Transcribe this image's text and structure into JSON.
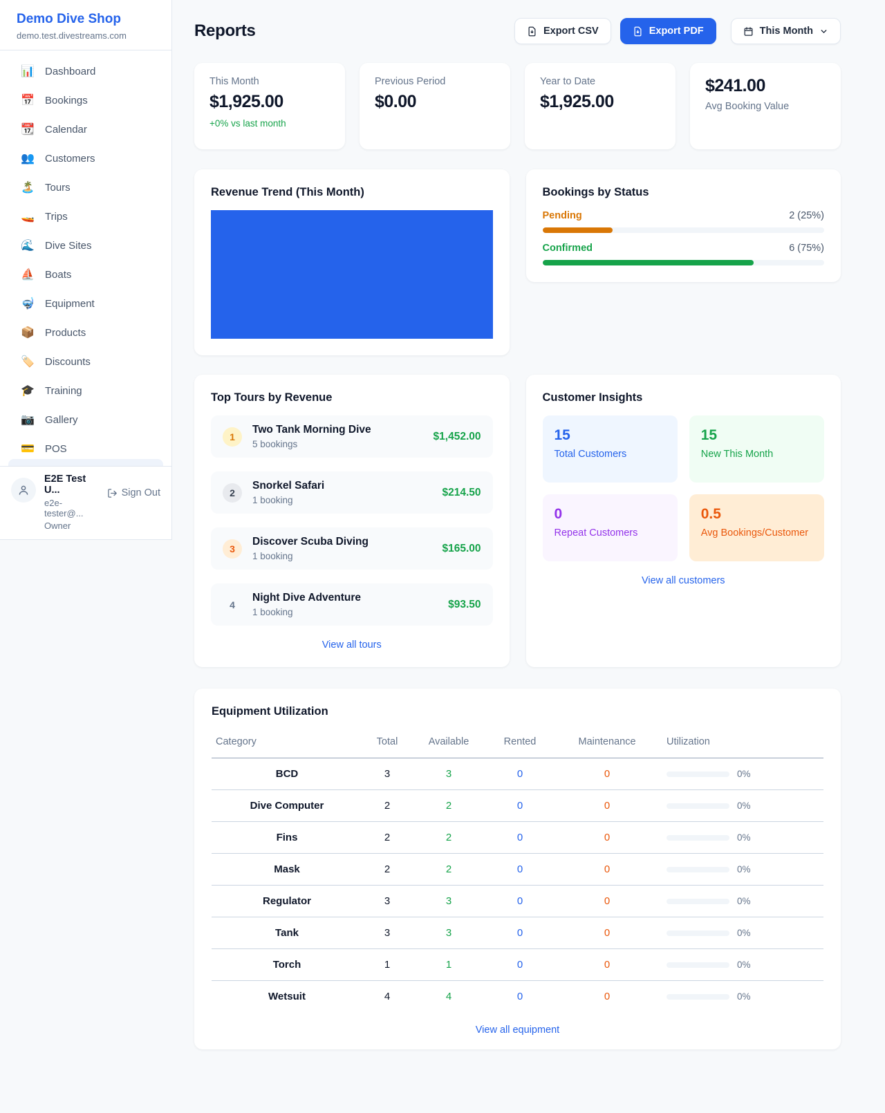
{
  "app": {
    "name": "Demo Dive Shop",
    "domain": "demo.test.divestreams.com"
  },
  "sidebar": {
    "items": [
      {
        "icon": "📊",
        "name": "dashboard",
        "label": "Dashboard"
      },
      {
        "icon": "📅",
        "name": "bookings",
        "label": "Bookings"
      },
      {
        "icon": "📆",
        "name": "calendar",
        "label": "Calendar"
      },
      {
        "icon": "👥",
        "name": "customers",
        "label": "Customers"
      },
      {
        "icon": "🏝️",
        "name": "tours",
        "label": "Tours"
      },
      {
        "icon": "🚤",
        "name": "trips",
        "label": "Trips"
      },
      {
        "icon": "🌊",
        "name": "dive-sites",
        "label": "Dive Sites"
      },
      {
        "icon": "⛵",
        "name": "boats",
        "label": "Boats"
      },
      {
        "icon": "🤿",
        "name": "equipment",
        "label": "Equipment"
      },
      {
        "icon": "📦",
        "name": "products",
        "label": "Products"
      },
      {
        "icon": "🏷️",
        "name": "discounts",
        "label": "Discounts"
      },
      {
        "icon": "🎓",
        "name": "training",
        "label": "Training"
      },
      {
        "icon": "📷",
        "name": "gallery",
        "label": "Gallery"
      },
      {
        "icon": "💳",
        "name": "pos",
        "label": "POS"
      }
    ],
    "user": {
      "name": "E2E Test U...",
      "email": "e2e-tester@...",
      "role": "Owner",
      "signout_label": "Sign Out"
    }
  },
  "header": {
    "title": "Reports",
    "export_csv_label": "Export CSV",
    "export_pdf_label": "Export PDF",
    "period_label": "This Month"
  },
  "stats": [
    {
      "label": "This Month",
      "value": "$1,925.00",
      "delta": "+0% vs last month",
      "value_first": false
    },
    {
      "label": "Previous Period",
      "value": "$0.00",
      "delta": "",
      "value_first": false
    },
    {
      "label": "Year to Date",
      "value": "$1,925.00",
      "delta": "",
      "value_first": false
    },
    {
      "label": "Avg Booking Value",
      "value": "$241.00",
      "delta": "",
      "value_first": true
    }
  ],
  "revenue_trend": {
    "title": "Revenue Trend (This Month)",
    "bar_color": "#2563eb",
    "note": "single full-width bar, no axes or labels visible"
  },
  "bookings_by_status": {
    "title": "Bookings by Status",
    "rows": [
      {
        "label": "Pending",
        "value": "2 (25%)",
        "pct": 25,
        "color": "#d97706"
      },
      {
        "label": "Confirmed",
        "value": "6 (75%)",
        "pct": 75,
        "color": "#16a34a"
      }
    ]
  },
  "top_tours": {
    "title": "Top Tours by Revenue",
    "rows": [
      {
        "rank": "1",
        "name": "Two Tank Morning Dive",
        "sub": "5 bookings",
        "amount": "$1,452.00",
        "badge_bg": "#fef3c7",
        "badge_color": "#d97706"
      },
      {
        "rank": "2",
        "name": "Snorkel Safari",
        "sub": "1 booking",
        "amount": "$214.50",
        "badge_bg": "#e8eaee",
        "badge_color": "#374151"
      },
      {
        "rank": "3",
        "name": "Discover Scuba Diving",
        "sub": "1 booking",
        "amount": "$165.00",
        "badge_bg": "#ffedd5",
        "badge_color": "#ea580c"
      },
      {
        "rank": "4",
        "name": "Night Dive Adventure",
        "sub": "1 booking",
        "amount": "$93.50",
        "badge_bg": "transparent",
        "badge_color": "#64748b"
      }
    ],
    "link": "View all tours"
  },
  "customer_insights": {
    "title": "Customer Insights",
    "tiles": [
      {
        "value": "15",
        "label": "Total Customers",
        "bg": "#eff6ff",
        "color": "#2563eb"
      },
      {
        "value": "15",
        "label": "New This Month",
        "bg": "#f0fdf4",
        "color": "#16a34a"
      },
      {
        "value": "0",
        "label": "Repeat Customers",
        "bg": "#faf5ff",
        "color": "#9333ea"
      },
      {
        "value": "0.5",
        "label": "Avg Bookings/Customer",
        "bg": "#ffedd5",
        "color": "#ea580c"
      }
    ],
    "link": "View all customers"
  },
  "equipment": {
    "title": "Equipment Utilization",
    "columns": [
      "Category",
      "Total",
      "Available",
      "Rented",
      "Maintenance",
      "Utilization"
    ],
    "rows": [
      {
        "category": "BCD",
        "total": "3",
        "available": "3",
        "rented": "0",
        "maintenance": "0",
        "utilization": "0%"
      },
      {
        "category": "Dive Computer",
        "total": "2",
        "available": "2",
        "rented": "0",
        "maintenance": "0",
        "utilization": "0%"
      },
      {
        "category": "Fins",
        "total": "2",
        "available": "2",
        "rented": "0",
        "maintenance": "0",
        "utilization": "0%"
      },
      {
        "category": "Mask",
        "total": "2",
        "available": "2",
        "rented": "0",
        "maintenance": "0",
        "utilization": "0%"
      },
      {
        "category": "Regulator",
        "total": "3",
        "available": "3",
        "rented": "0",
        "maintenance": "0",
        "utilization": "0%"
      },
      {
        "category": "Tank",
        "total": "3",
        "available": "3",
        "rented": "0",
        "maintenance": "0",
        "utilization": "0%"
      },
      {
        "category": "Torch",
        "total": "1",
        "available": "1",
        "rented": "0",
        "maintenance": "0",
        "utilization": "0%"
      },
      {
        "category": "Wetsuit",
        "total": "4",
        "available": "4",
        "rented": "0",
        "maintenance": "0",
        "utilization": "0%"
      }
    ],
    "link": "View all equipment"
  },
  "colors": {
    "primary": "#2563eb",
    "positive": "#16a34a",
    "pending": "#d97706",
    "maintenance": "#ea580c",
    "repeat": "#9333ea",
    "muted_text": "#64748b"
  }
}
